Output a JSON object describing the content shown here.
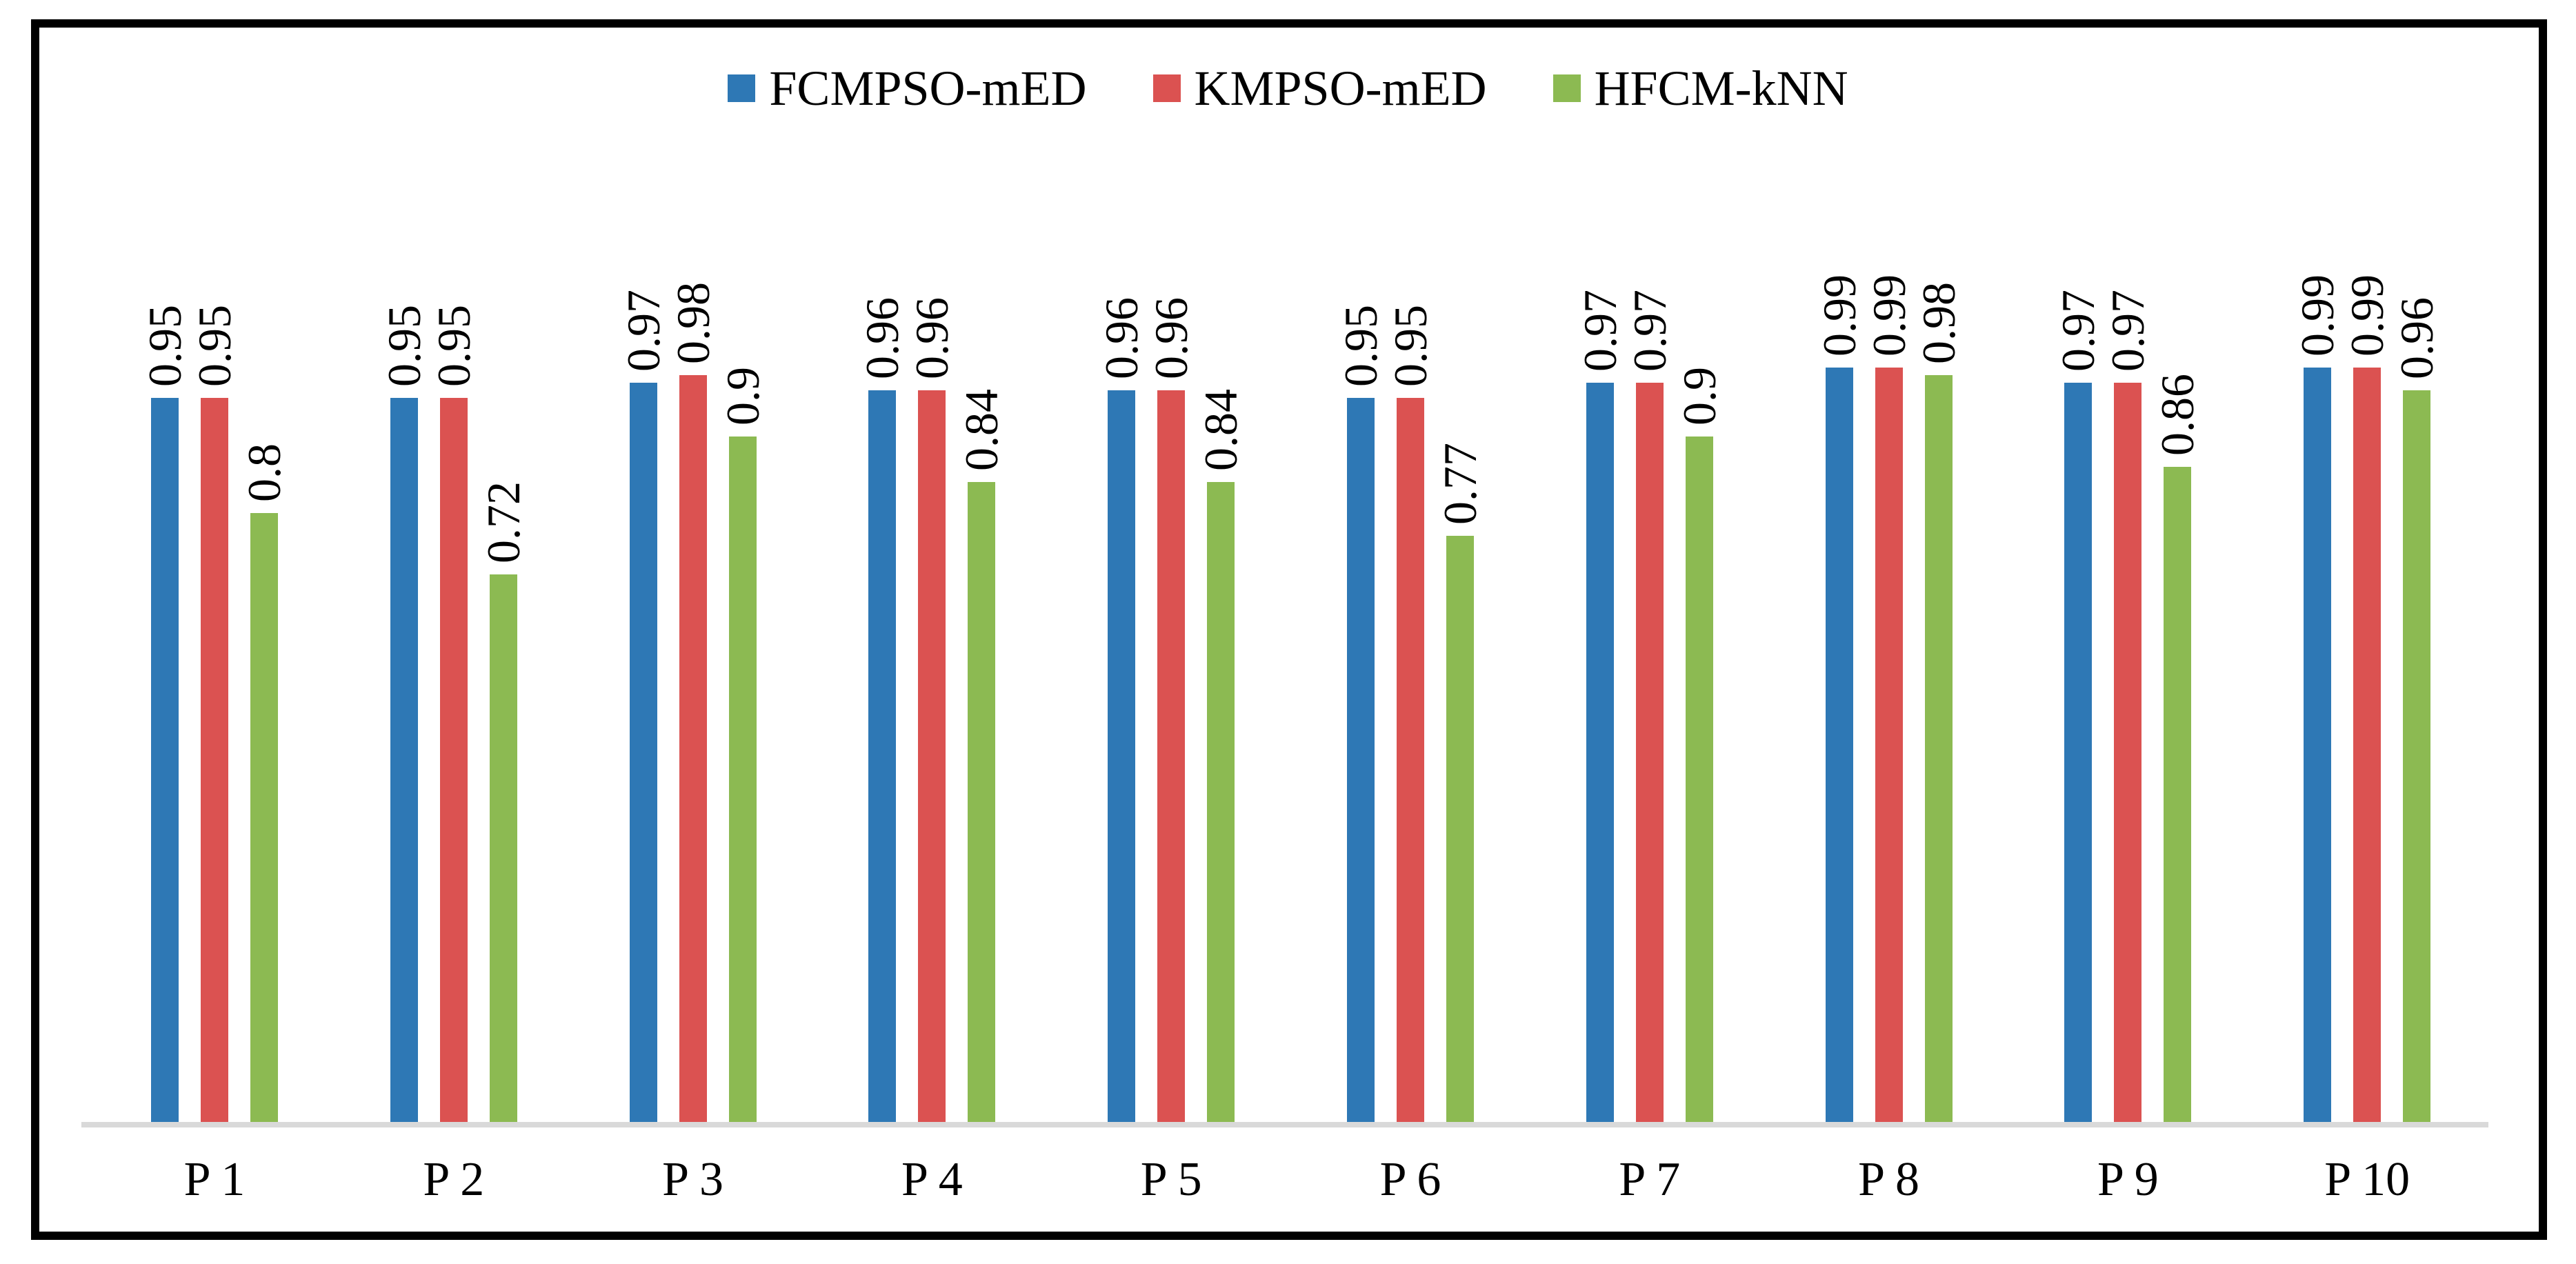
{
  "chart_data": {
    "type": "bar",
    "title": "",
    "xlabel": "",
    "ylabel": "",
    "ylim": [
      0,
      1
    ],
    "grid": false,
    "legend_position": "top-center",
    "axis_baseline_color": "#d9d9d9",
    "frame_border_color": "#000000",
    "background_color": "#ffffff",
    "categories": [
      "P 1",
      "P 2",
      "P 3",
      "P 4",
      "P 5",
      "P 6",
      "P 7",
      "P 8",
      "P 9",
      "P 10"
    ],
    "series": [
      {
        "name": "FCMPSO-mED",
        "color": "#2e78b5",
        "values": [
          0.95,
          0.95,
          0.97,
          0.96,
          0.96,
          0.95,
          0.97,
          0.99,
          0.97,
          0.99
        ],
        "labels": [
          "0.95",
          "0.95",
          "0.97",
          "0.96",
          "0.96",
          "0.95",
          "0.97",
          "0.99",
          "0.97",
          "0.99"
        ]
      },
      {
        "name": "KMPSO-mED",
        "color": "#db5251",
        "values": [
          0.95,
          0.95,
          0.98,
          0.96,
          0.96,
          0.95,
          0.97,
          0.99,
          0.97,
          0.99
        ],
        "labels": [
          "0.95",
          "0.95",
          "0.98",
          "0.96",
          "0.96",
          "0.95",
          "0.97",
          "0.99",
          "0.97",
          "0.99"
        ]
      },
      {
        "name": "HFCM-kNN",
        "color": "#8cba52",
        "values": [
          0.8,
          0.72,
          0.9,
          0.84,
          0.84,
          0.77,
          0.9,
          0.98,
          0.86,
          0.96
        ],
        "labels": [
          "0.8",
          "0.72",
          "0.9",
          "0.84",
          "0.84",
          "0.77",
          "0.9",
          "0.98",
          "0.86",
          "0.96"
        ]
      }
    ]
  }
}
